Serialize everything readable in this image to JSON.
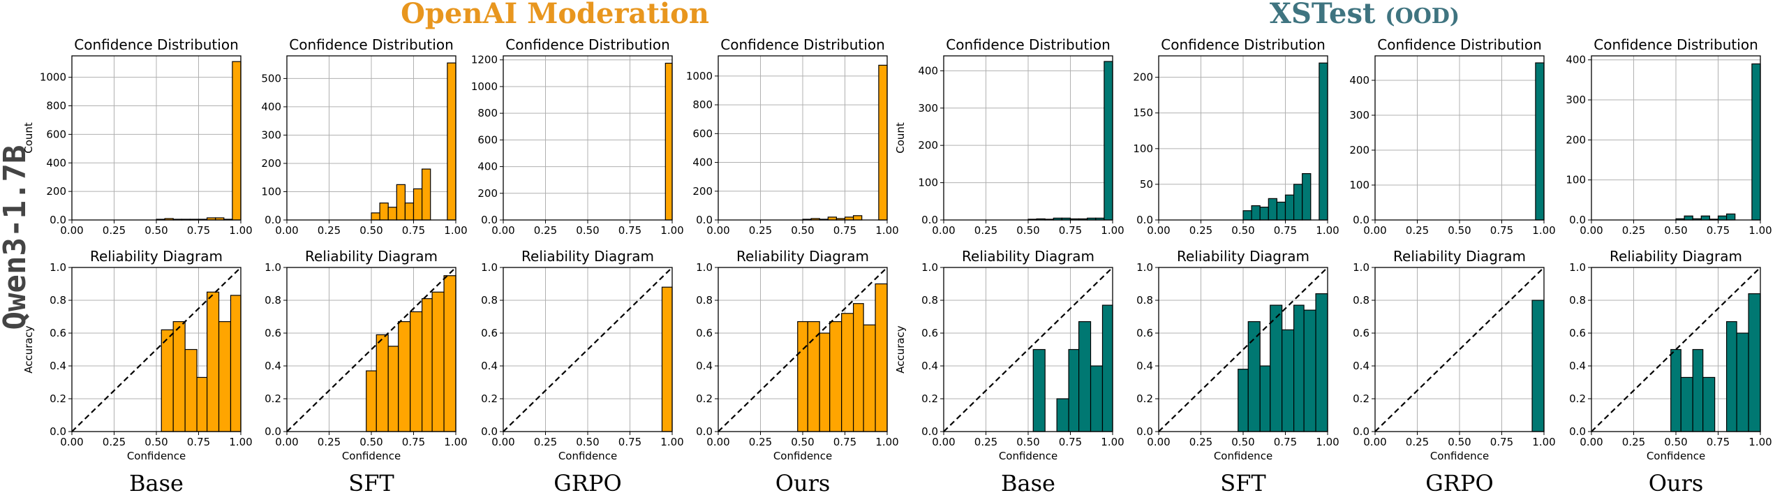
{
  "colors": {
    "openai": "#FFA500",
    "xstest": "#007872",
    "openai_title": "#E8961E",
    "xstest_title": "#3F7480"
  },
  "figure": {
    "groups": [
      {
        "label": "OpenAI Moderation",
        "sub": ""
      },
      {
        "label": "XSTest",
        "sub": "(OOD)"
      }
    ],
    "row_label": "Qwen3-1.7B",
    "methods": [
      "Base",
      "SFT",
      "GRPO",
      "Ours",
      "Base",
      "SFT",
      "GRPO",
      "Ours"
    ]
  },
  "chart_data": [
    {
      "type": "bar",
      "title": "Confidence Distribution",
      "ylabel": "Count",
      "xlabel": "",
      "xlim": [
        0,
        1
      ],
      "ylim": [
        0,
        1150
      ],
      "yticks": [
        0,
        200,
        400,
        600,
        800,
        1000
      ],
      "bin_edges": [
        0.5,
        0.55,
        0.6,
        0.65,
        0.7,
        0.75,
        0.8,
        0.85,
        0.9,
        0.95,
        1.0
      ],
      "values": [
        5,
        10,
        5,
        5,
        5,
        5,
        15,
        15,
        5,
        1110
      ],
      "color": "openai",
      "grid": true
    },
    {
      "type": "bar",
      "title": "Confidence Distribution",
      "ylabel": "",
      "xlabel": "",
      "xlim": [
        0,
        1
      ],
      "ylim": [
        0,
        580
      ],
      "yticks": [
        0,
        100,
        200,
        300,
        400,
        500
      ],
      "bin_edges": [
        0.5,
        0.55,
        0.6,
        0.65,
        0.7,
        0.75,
        0.8,
        0.85,
        0.9,
        0.95,
        1.0
      ],
      "values": [
        25,
        60,
        45,
        125,
        60,
        110,
        180,
        0,
        0,
        555
      ],
      "color": "openai",
      "grid": true
    },
    {
      "type": "bar",
      "title": "Confidence Distribution",
      "ylabel": "",
      "xlabel": "",
      "xlim": [
        0,
        1
      ],
      "ylim": [
        0,
        1230
      ],
      "yticks": [
        0,
        200,
        400,
        600,
        800,
        1000,
        1200
      ],
      "bin_edges": [
        0.96,
        1.0
      ],
      "values": [
        1175
      ],
      "color": "openai",
      "grid": true
    },
    {
      "type": "bar",
      "title": "Confidence Distribution",
      "ylabel": "",
      "xlabel": "",
      "xlim": [
        0,
        1
      ],
      "ylim": [
        0,
        1140
      ],
      "yticks": [
        0,
        200,
        400,
        600,
        800,
        1000
      ],
      "bin_edges": [
        0.5,
        0.55,
        0.6,
        0.65,
        0.7,
        0.75,
        0.8,
        0.85,
        0.9,
        0.95,
        1.0
      ],
      "values": [
        5,
        10,
        5,
        20,
        10,
        20,
        30,
        0,
        0,
        1075
      ],
      "color": "openai",
      "grid": true
    },
    {
      "type": "bar",
      "title": "Confidence Distribution",
      "ylabel": "Count",
      "xlabel": "",
      "xlim": [
        0,
        1
      ],
      "ylim": [
        0,
        440
      ],
      "yticks": [
        0,
        100,
        200,
        300,
        400
      ],
      "bin_edges": [
        0.5,
        0.55,
        0.6,
        0.65,
        0.7,
        0.75,
        0.8,
        0.85,
        0.9,
        0.95,
        1.0
      ],
      "values": [
        2,
        3,
        2,
        5,
        5,
        3,
        3,
        5,
        5,
        425
      ],
      "color": "xstest",
      "grid": true
    },
    {
      "type": "bar",
      "title": "Confidence Distribution",
      "ylabel": "",
      "xlabel": "",
      "xlim": [
        0,
        1
      ],
      "ylim": [
        0,
        230
      ],
      "yticks": [
        0,
        50,
        100,
        150,
        200
      ],
      "bin_edges": [
        0.5,
        0.55,
        0.6,
        0.65,
        0.7,
        0.75,
        0.8,
        0.85,
        0.9,
        0.95,
        1.0
      ],
      "values": [
        13,
        20,
        18,
        30,
        25,
        35,
        50,
        65,
        0,
        220
      ],
      "color": "xstest",
      "grid": true
    },
    {
      "type": "bar",
      "title": "Confidence Distribution",
      "ylabel": "",
      "xlabel": "",
      "xlim": [
        0,
        1
      ],
      "ylim": [
        0,
        470
      ],
      "yticks": [
        0,
        100,
        200,
        300,
        400
      ],
      "bin_edges": [
        0.95,
        1.0
      ],
      "values": [
        450
      ],
      "color": "xstest",
      "grid": true
    },
    {
      "type": "bar",
      "title": "Confidence Distribution",
      "ylabel": "",
      "xlabel": "",
      "xlim": [
        0,
        1
      ],
      "ylim": [
        0,
        410
      ],
      "yticks": [
        0,
        100,
        200,
        300,
        400
      ],
      "bin_edges": [
        0.5,
        0.55,
        0.6,
        0.65,
        0.7,
        0.75,
        0.8,
        0.85,
        0.9,
        0.95,
        1.0
      ],
      "values": [
        3,
        10,
        3,
        10,
        2,
        10,
        15,
        0,
        0,
        390
      ],
      "color": "xstest",
      "grid": true
    },
    {
      "type": "bar",
      "title": "Reliability Diagram",
      "ylabel": "Accuracy",
      "xlabel": "Confidence",
      "xlim": [
        0,
        1
      ],
      "ylim": [
        0,
        1
      ],
      "yticks": [
        0,
        0.2,
        0.4,
        0.6,
        0.8,
        1.0
      ],
      "bin_edges": [
        0.53,
        0.6,
        0.67,
        0.74,
        0.8,
        0.87,
        0.94,
        1.0
      ],
      "values": [
        0.62,
        0.67,
        0.5,
        0.33,
        0.85,
        0.67,
        0.83
      ],
      "color": "openai",
      "diagonal": true,
      "grid": true
    },
    {
      "type": "bar",
      "title": "Reliability Diagram",
      "ylabel": "",
      "xlabel": "Confidence",
      "xlim": [
        0,
        1
      ],
      "ylim": [
        0,
        1
      ],
      "yticks": [
        0,
        0.2,
        0.4,
        0.6,
        0.8,
        1.0
      ],
      "bin_edges": [
        0.47,
        0.53,
        0.6,
        0.66,
        0.73,
        0.8,
        0.86,
        0.93,
        1.0
      ],
      "values": [
        0.37,
        0.59,
        0.52,
        0.67,
        0.73,
        0.81,
        0.85,
        0.95
      ],
      "color": "openai",
      "diagonal": true,
      "grid": true
    },
    {
      "type": "bar",
      "title": "Reliability Diagram",
      "ylabel": "",
      "xlabel": "Confidence",
      "xlim": [
        0,
        1
      ],
      "ylim": [
        0,
        1
      ],
      "yticks": [
        0,
        0.2,
        0.4,
        0.6,
        0.8,
        1.0
      ],
      "bin_edges": [
        0.94,
        1.0
      ],
      "values": [
        0.88
      ],
      "color": "openai",
      "diagonal": true,
      "grid": true
    },
    {
      "type": "bar",
      "title": "Reliability Diagram",
      "ylabel": "",
      "xlabel": "Confidence",
      "xlim": [
        0,
        1
      ],
      "ylim": [
        0,
        1
      ],
      "yticks": [
        0,
        0.2,
        0.4,
        0.6,
        0.8,
        1.0
      ],
      "bin_edges": [
        0.47,
        0.53,
        0.6,
        0.66,
        0.73,
        0.8,
        0.86,
        0.93,
        1.0
      ],
      "values": [
        0.67,
        0.67,
        0.6,
        0.67,
        0.72,
        0.78,
        0.65,
        0.9
      ],
      "color": "openai",
      "diagonal": true,
      "grid": true
    },
    {
      "type": "bar",
      "title": "Reliability Diagram",
      "ylabel": "Accuracy",
      "xlabel": "Confidence",
      "xlim": [
        0,
        1
      ],
      "ylim": [
        0,
        1
      ],
      "yticks": [
        0,
        0.2,
        0.4,
        0.6,
        0.8,
        1.0
      ],
      "bin_edges": [
        0.53,
        0.6,
        0.67,
        0.74,
        0.8,
        0.87,
        0.94,
        1.0
      ],
      "values": [
        0.5,
        0.0,
        0.2,
        0.5,
        0.67,
        0.4,
        0.77
      ],
      "color": "xstest",
      "diagonal": true,
      "grid": true
    },
    {
      "type": "bar",
      "title": "Reliability Diagram",
      "ylabel": "",
      "xlabel": "Confidence",
      "xlim": [
        0,
        1
      ],
      "ylim": [
        0,
        1
      ],
      "yticks": [
        0,
        0.2,
        0.4,
        0.6,
        0.8,
        1.0
      ],
      "bin_edges": [
        0.47,
        0.53,
        0.6,
        0.66,
        0.73,
        0.8,
        0.86,
        0.93,
        1.0
      ],
      "values": [
        0.38,
        0.67,
        0.4,
        0.77,
        0.62,
        0.77,
        0.74,
        0.84
      ],
      "color": "xstest",
      "diagonal": true,
      "grid": true
    },
    {
      "type": "bar",
      "title": "Reliability Diagram",
      "ylabel": "",
      "xlabel": "Confidence",
      "xlim": [
        0,
        1
      ],
      "ylim": [
        0,
        1
      ],
      "yticks": [
        0,
        0.2,
        0.4,
        0.6,
        0.8,
        1.0
      ],
      "bin_edges": [
        0.93,
        1.0
      ],
      "values": [
        0.8
      ],
      "color": "xstest",
      "diagonal": true,
      "grid": true
    },
    {
      "type": "bar",
      "title": "Reliability Diagram",
      "ylabel": "",
      "xlabel": "Confidence",
      "xlim": [
        0,
        1
      ],
      "ylim": [
        0,
        1
      ],
      "yticks": [
        0,
        0.2,
        0.4,
        0.6,
        0.8,
        1.0
      ],
      "bin_edges": [
        0.47,
        0.53,
        0.6,
        0.66,
        0.73,
        0.8,
        0.86,
        0.93,
        1.0
      ],
      "values": [
        0.5,
        0.33,
        0.5,
        0.33,
        0.0,
        0.67,
        0.6,
        0.84
      ],
      "color": "xstest",
      "diagonal": true,
      "grid": true
    }
  ]
}
